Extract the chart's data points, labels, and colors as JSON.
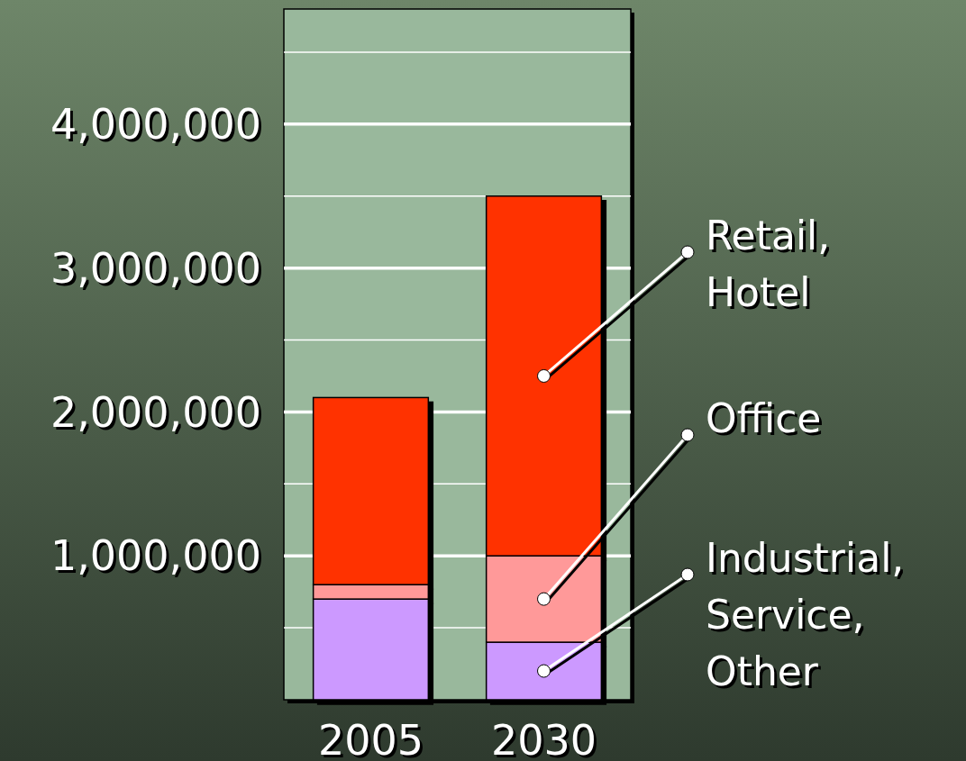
{
  "chart_data": {
    "type": "bar",
    "stacked": true,
    "categories": [
      "2005",
      "2030"
    ],
    "series": [
      {
        "name": "Industrial, Service, Other",
        "color": "#cc99ff",
        "values": [
          700000,
          400000
        ]
      },
      {
        "name": "Office",
        "color": "#ff9999",
        "values": [
          100000,
          600000
        ]
      },
      {
        "name": "Retail, Hotel",
        "color": "#ff3300",
        "values": [
          1300000,
          2500000
        ]
      }
    ],
    "ylim": [
      0,
      4800000
    ],
    "yticks": [
      {
        "value": 500000,
        "label": null
      },
      {
        "value": 1000000,
        "label": "1,000,000"
      },
      {
        "value": 1500000,
        "label": null
      },
      {
        "value": 2000000,
        "label": "2,000,000"
      },
      {
        "value": 2500000,
        "label": null
      },
      {
        "value": 3000000,
        "label": "3,000,000"
      },
      {
        "value": 3500000,
        "label": null
      },
      {
        "value": 4000000,
        "label": "4,000,000"
      },
      {
        "value": 4500000,
        "label": null
      }
    ],
    "grid": "y"
  }
}
